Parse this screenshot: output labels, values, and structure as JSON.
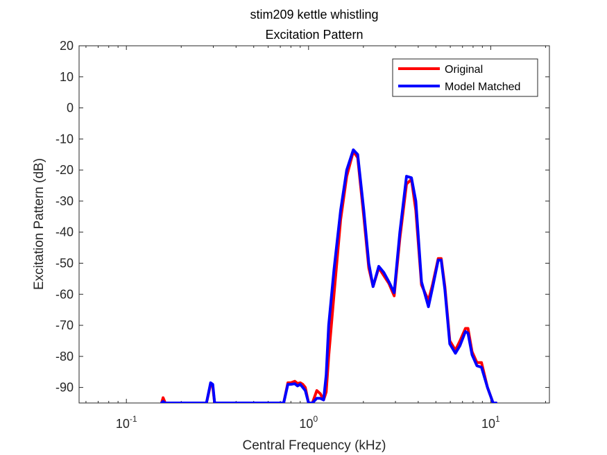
{
  "chart_data": {
    "type": "line",
    "title": [
      "stim209 kettle whistling",
      "Excitation Pattern"
    ],
    "xlabel": "Central Frequency (kHz)",
    "ylabel": "Excitation Pattern (dB)",
    "xscale": "log",
    "xlim": [
      0.055,
      21
    ],
    "ylim": [
      -95,
      20
    ],
    "yticks": [
      -90,
      -80,
      -70,
      -60,
      -50,
      -40,
      -30,
      -20,
      -10,
      0,
      10,
      20
    ],
    "xticks": [
      {
        "value": 0.1,
        "base": "10",
        "exp": "-1"
      },
      {
        "value": 1,
        "base": "10",
        "exp": "0"
      },
      {
        "value": 10,
        "base": "10",
        "exp": "1"
      }
    ],
    "grid": false,
    "legend_position": "top-right",
    "series": [
      {
        "name": "Original",
        "color": "#ff0000",
        "x": [
          0.156,
          0.159,
          0.163,
          0.166,
          0.275,
          0.29,
          0.298,
          0.305,
          0.318,
          0.73,
          0.77,
          0.8,
          0.84,
          0.87,
          0.9,
          0.93,
          0.96,
          1.0,
          1.05,
          1.11,
          1.16,
          1.21,
          1.25,
          1.29,
          1.38,
          1.5,
          1.62,
          1.76,
          1.86,
          2.01,
          2.14,
          2.26,
          2.43,
          2.59,
          2.76,
          2.95,
          3.17,
          3.45,
          3.67,
          3.88,
          4.17,
          4.55,
          4.79,
          5.15,
          5.35,
          5.6,
          5.96,
          6.4,
          6.78,
          7.26,
          7.5,
          7.9,
          8.4,
          8.9,
          9.6,
          10.3,
          10.7
        ],
        "y": [
          -95,
          -93.3,
          -94.8,
          -95,
          -95,
          -89,
          -89.8,
          -95,
          -95,
          -95,
          -88.5,
          -88.5,
          -88,
          -88.7,
          -88.5,
          -89,
          -90,
          -95,
          -95,
          -91,
          -92,
          -94,
          -91.5,
          -80,
          -60,
          -36,
          -22,
          -14,
          -16,
          -35,
          -51.5,
          -57.5,
          -51.5,
          -54,
          -56.5,
          -60.5,
          -42,
          -24.5,
          -23,
          -33,
          -57,
          -62,
          -57,
          -48.5,
          -48.5,
          -57.5,
          -75,
          -78,
          -75,
          -71,
          -71,
          -78.5,
          -82,
          -82,
          -90,
          -95,
          -95
        ]
      },
      {
        "name": "Model Matched",
        "color": "#0000ff",
        "x": [
          0.156,
          0.159,
          0.163,
          0.166,
          0.275,
          0.29,
          0.298,
          0.305,
          0.318,
          0.73,
          0.77,
          0.8,
          0.84,
          0.87,
          0.9,
          0.93,
          0.96,
          1.0,
          1.05,
          1.11,
          1.16,
          1.21,
          1.25,
          1.29,
          1.38,
          1.5,
          1.62,
          1.76,
          1.86,
          2.01,
          2.14,
          2.26,
          2.43,
          2.59,
          2.76,
          2.95,
          3.17,
          3.45,
          3.67,
          3.88,
          4.17,
          4.55,
          4.79,
          5.15,
          5.35,
          5.6,
          5.96,
          6.4,
          6.78,
          7.26,
          7.5,
          7.9,
          8.4,
          8.9,
          9.6,
          10.3,
          10.7
        ],
        "y": [
          -95,
          -94.5,
          -95,
          -95,
          -95,
          -88.5,
          -89,
          -95,
          -95,
          -95,
          -89,
          -89,
          -88.8,
          -89.5,
          -89,
          -90,
          -91,
          -95,
          -95,
          -93.5,
          -93.5,
          -94,
          -86,
          -70,
          -52,
          -33,
          -20,
          -13.5,
          -15,
          -33,
          -50,
          -57.5,
          -51,
          -53,
          -56,
          -59.5,
          -40,
          -22,
          -22.5,
          -30,
          -56,
          -64,
          -58,
          -49,
          -49,
          -58.5,
          -76,
          -79,
          -76.5,
          -72,
          -72.5,
          -79.5,
          -83,
          -83.5,
          -90,
          -95,
          -95
        ]
      }
    ]
  }
}
